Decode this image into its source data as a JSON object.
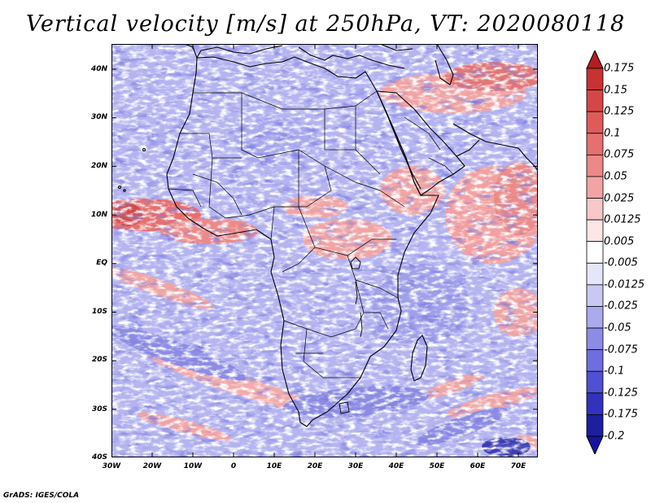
{
  "title": "Vertical velocity [m/s] at 250hPa, VT: 2020080118",
  "footer": "GrADS: IGES/COLA",
  "axes": {
    "lat_labels": [
      "40N",
      "30N",
      "20N",
      "10N",
      "EQ",
      "10S",
      "20S",
      "30S",
      "40S"
    ],
    "lon_labels": [
      "30W",
      "20W",
      "10W",
      "0",
      "10E",
      "20E",
      "30E",
      "40E",
      "50E",
      "60E",
      "70E"
    ],
    "lat_range": [
      -40,
      45
    ],
    "lon_range": [
      -30,
      75
    ]
  },
  "colorbar": {
    "labels": [
      "0.175",
      "0.15",
      "0.125",
      "0.1",
      "0.075",
      "0.05",
      "0.025",
      "0.0125",
      "0.005",
      "-0.005",
      "-0.0125",
      "-0.025",
      "-0.05",
      "-0.075",
      "-0.1",
      "-0.125",
      "-0.175",
      "-0.2"
    ],
    "colors": [
      "#b41e1e",
      "#c83232",
      "#d74646",
      "#e05a5a",
      "#e67070",
      "#ec8888",
      "#f2a4a4",
      "#f8c8c8",
      "#fce6e6",
      "#ffffff",
      "#e6e6fa",
      "#c8c8f2",
      "#aaaaec",
      "#8c8ce6",
      "#6e6ee0",
      "#5050d2",
      "#3232be",
      "#1e1ea0",
      "#1414a0"
    ]
  },
  "colors": {
    "coastline": "#000000",
    "background_field_red": "#f0a0a0",
    "background_field_blue": "#a8a8ee"
  }
}
